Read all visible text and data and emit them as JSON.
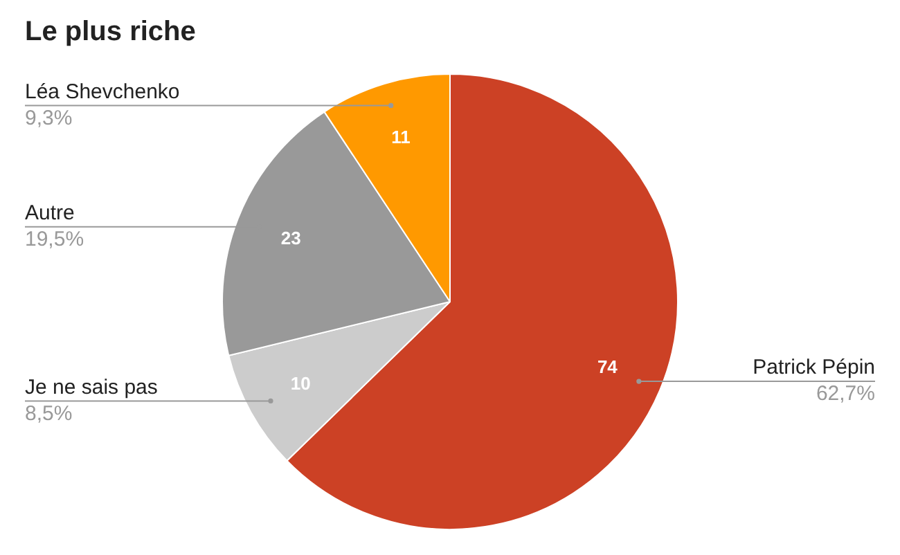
{
  "chart_data": {
    "type": "pie",
    "title": "Le plus riche",
    "categories": [
      "Patrick Pépin",
      "Je ne sais pas",
      "Autre",
      "Léa Shevchenko"
    ],
    "values": [
      62.7,
      8.5,
      19.5,
      9.3
    ],
    "colors": [
      "#cc4125",
      "#cccccc",
      "#999999",
      "#ff9900"
    ],
    "value_labels": [
      "62,7%",
      "8,5%",
      "19,5%",
      "9,3%"
    ],
    "annotations": [
      "74",
      "10",
      "23",
      "11"
    ]
  }
}
